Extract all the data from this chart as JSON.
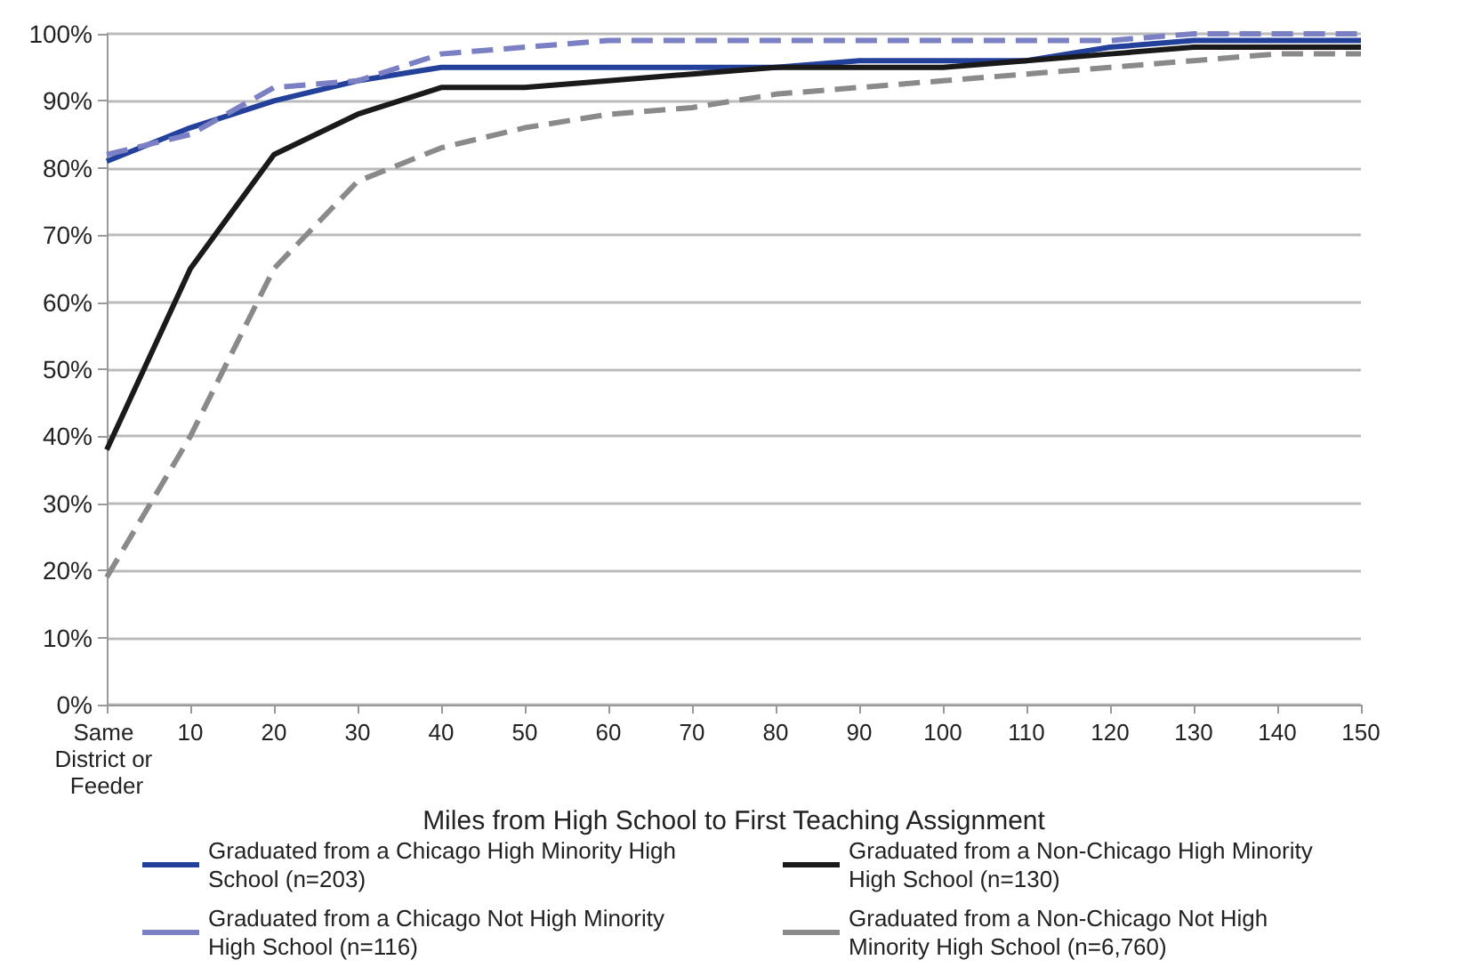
{
  "chart_data": {
    "type": "line",
    "xlabel": "Miles from High School to First Teaching Assignment",
    "categories": [
      "Same District or Feeder",
      "10",
      "20",
      "30",
      "40",
      "50",
      "60",
      "70",
      "80",
      "90",
      "100",
      "110",
      "120",
      "130",
      "140",
      "150"
    ],
    "ylim": [
      0,
      100
    ],
    "yticks": [
      {
        "value": 0,
        "label": "0%"
      },
      {
        "value": 10,
        "label": "10%"
      },
      {
        "value": 20,
        "label": "20%"
      },
      {
        "value": 30,
        "label": "30%"
      },
      {
        "value": 40,
        "label": "40%"
      },
      {
        "value": 50,
        "label": "50%"
      },
      {
        "value": 60,
        "label": "60%"
      },
      {
        "value": 70,
        "label": "70%"
      },
      {
        "value": 80,
        "label": "80%"
      },
      {
        "value": 90,
        "label": "90%"
      },
      {
        "value": 100,
        "label": "100%"
      }
    ],
    "grid": "y",
    "legend": "bottom",
    "marker": "none",
    "series": [
      {
        "name": "Graduated from a Chicago High Minority High School (n=203)",
        "color": "#23409a",
        "line_style": "solid",
        "values": [
          81,
          86,
          90,
          93,
          95,
          95,
          95,
          95,
          95,
          96,
          96,
          96,
          98,
          99,
          99,
          99
        ]
      },
      {
        "name": "Graduated from a Non-Chicago High Minority High School (n=130)",
        "color": "#1a1a1a",
        "line_style": "solid",
        "values": [
          38,
          65,
          82,
          88,
          92,
          92,
          93,
          94,
          95,
          95,
          95,
          96,
          97,
          98,
          98,
          98
        ]
      },
      {
        "name": "Graduated from a Chicago Not High Minority High School (n=116)",
        "color": "#7b7fc4",
        "line_style": "dashed",
        "values": [
          82,
          85,
          92,
          93,
          97,
          98,
          99,
          99,
          99,
          99,
          99,
          99,
          99,
          100,
          100,
          100
        ]
      },
      {
        "name": "Graduated from a Non-Chicago Not High Minority High School (n=6,760)",
        "color": "#8a8a8a",
        "line_style": "dashed",
        "values": [
          19,
          40,
          65,
          78,
          83,
          86,
          88,
          89,
          91,
          92,
          93,
          94,
          95,
          96,
          97,
          97
        ]
      }
    ]
  }
}
